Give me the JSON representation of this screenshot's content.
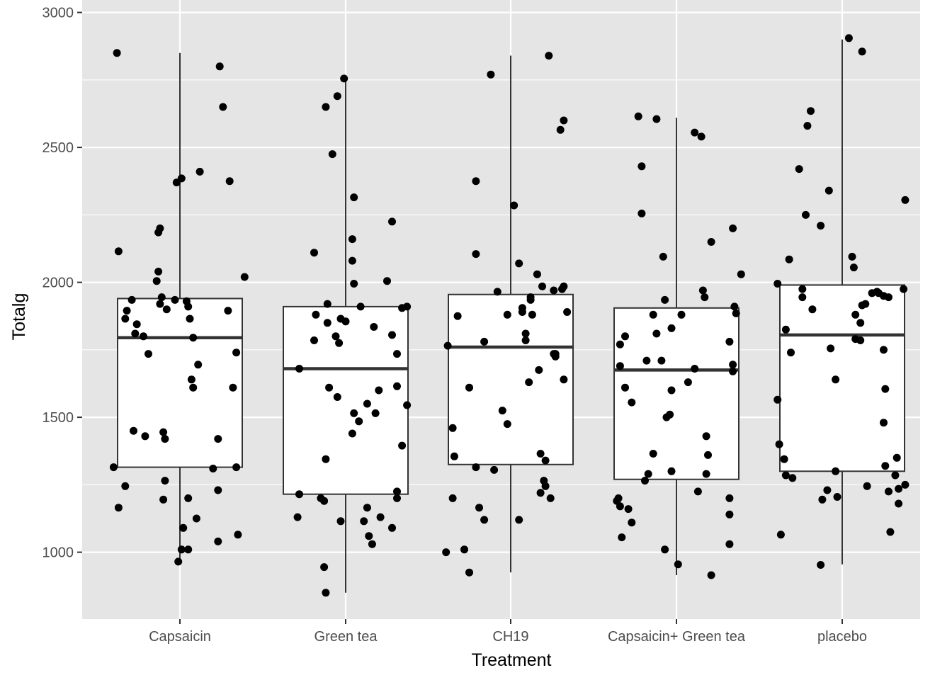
{
  "chart_data": {
    "type": "boxplot",
    "title": "",
    "xlabel": "Treatment",
    "ylabel": "Totalg",
    "ylim": [
      745,
      3005
    ],
    "y_ticks": [
      1000,
      1500,
      2000,
      2500,
      3000
    ],
    "y_tick_labels": [
      "1000",
      "1500",
      "2000",
      "2500",
      "3000"
    ],
    "grid": true,
    "legend": "none",
    "colors": {
      "panel_background": "#e5e5e5",
      "grid": "#ffffff",
      "box_fill": "#ffffff",
      "box_line": "#333333",
      "points": "#000000"
    },
    "categories": [
      "Capsaicin",
      "Green tea",
      "CH19",
      "Capsaicin+ Green tea",
      "placebo"
    ],
    "boxes": [
      {
        "category": "Capsaicin",
        "min": 965,
        "q1": 1315,
        "median": 1795,
        "q3": 1940,
        "max": 2850
      },
      {
        "category": "Green tea",
        "min": 850,
        "q1": 1215,
        "median": 1680,
        "q3": 1910,
        "max": 2755
      },
      {
        "category": "CH19",
        "min": 925,
        "q1": 1325,
        "median": 1760,
        "q3": 1955,
        "max": 2840
      },
      {
        "category": "Capsaicin+ Green tea",
        "min": 915,
        "q1": 1270,
        "median": 1675,
        "q3": 1905,
        "max": 2610
      },
      {
        "category": "placebo",
        "min": 955,
        "q1": 1300,
        "median": 1805,
        "q3": 1990,
        "max": 2900
      }
    ],
    "points": [
      [
        [
          -0.38,
          2850
        ],
        [
          -0.37,
          2115
        ],
        [
          -0.33,
          1865
        ],
        [
          -0.32,
          1895
        ],
        [
          -0.29,
          1935
        ],
        [
          -0.26,
          1845
        ],
        [
          -0.27,
          1810
        ],
        [
          -0.22,
          1800
        ],
        [
          -0.19,
          1735
        ],
        [
          -0.14,
          2005
        ],
        [
          -0.13,
          2040
        ],
        [
          -0.13,
          2185
        ],
        [
          -0.12,
          2200
        ],
        [
          -0.12,
          1920
        ],
        [
          -0.11,
          1945
        ],
        [
          -0.08,
          1900
        ],
        [
          -0.03,
          1935
        ],
        [
          -0.02,
          2370
        ],
        [
          0.01,
          2385
        ],
        [
          0.04,
          1930
        ],
        [
          0.05,
          1910
        ],
        [
          0.06,
          1865
        ],
        [
          0.08,
          1795
        ],
        [
          0.11,
          1695
        ],
        [
          0.07,
          1640
        ],
        [
          0.08,
          1610
        ],
        [
          0.12,
          2410
        ],
        [
          0.24,
          2800
        ],
        [
          0.26,
          2650
        ],
        [
          0.3,
          2375
        ],
        [
          0.29,
          1895
        ],
        [
          0.32,
          1610
        ],
        [
          0.34,
          1740
        ],
        [
          0.39,
          2020
        ],
        [
          -0.4,
          1315
        ],
        [
          -0.33,
          1245
        ],
        [
          -0.28,
          1450
        ],
        [
          -0.21,
          1430
        ],
        [
          -0.1,
          1445
        ],
        [
          -0.09,
          1420
        ],
        [
          -0.09,
          1265
        ],
        [
          -0.1,
          1195
        ],
        [
          0.05,
          1200
        ],
        [
          0.1,
          1125
        ],
        [
          0.02,
          1090
        ],
        [
          0.01,
          1010
        ],
        [
          0.05,
          1010
        ],
        [
          -0.01,
          965
        ],
        [
          0.2,
          1310
        ],
        [
          0.23,
          1420
        ],
        [
          0.23,
          1230
        ],
        [
          0.23,
          1040
        ],
        [
          0.34,
          1315
        ],
        [
          0.35,
          1065
        ],
        [
          -0.37,
          1165
        ]
      ],
      [
        [
          -0.19,
          2110
        ],
        [
          -0.19,
          1785
        ],
        [
          -0.28,
          1680
        ],
        [
          -0.28,
          1215
        ],
        [
          -0.29,
          1130
        ],
        [
          -0.18,
          1880
        ],
        [
          -0.12,
          2650
        ],
        [
          -0.11,
          1920
        ],
        [
          -0.11,
          1850
        ],
        [
          -0.1,
          1610
        ],
        [
          -0.12,
          1345
        ],
        [
          -0.15,
          1200
        ],
        [
          -0.13,
          1190
        ],
        [
          -0.13,
          945
        ],
        [
          -0.12,
          850
        ],
        [
          -0.05,
          1575
        ],
        [
          -0.08,
          2475
        ],
        [
          -0.05,
          2690
        ],
        [
          -0.01,
          2755
        ],
        [
          -0.03,
          1865
        ],
        [
          -0.06,
          1800
        ],
        [
          -0.04,
          1775
        ],
        [
          -0.03,
          1115
        ],
        [
          0.05,
          1995
        ],
        [
          0.0,
          1855
        ],
        [
          0.05,
          1515
        ],
        [
          0.04,
          1440
        ],
        [
          0.04,
          2160
        ],
        [
          0.04,
          2080
        ],
        [
          0.05,
          2315
        ],
        [
          0.09,
          1910
        ],
        [
          0.08,
          1485
        ],
        [
          0.11,
          1115
        ],
        [
          0.13,
          1550
        ],
        [
          0.13,
          1165
        ],
        [
          0.14,
          1060
        ],
        [
          0.16,
          1030
        ],
        [
          0.17,
          1835
        ],
        [
          0.18,
          1515
        ],
        [
          0.2,
          1600
        ],
        [
          0.21,
          1130
        ],
        [
          0.25,
          2005
        ],
        [
          0.28,
          2225
        ],
        [
          0.28,
          1805
        ],
        [
          0.28,
          1090
        ],
        [
          0.31,
          1735
        ],
        [
          0.31,
          1615
        ],
        [
          0.31,
          1225
        ],
        [
          0.31,
          1200
        ],
        [
          0.34,
          1905
        ],
        [
          0.34,
          1395
        ],
        [
          0.37,
          1910
        ],
        [
          0.37,
          1545
        ]
      ],
      [
        [
          -0.38,
          1765
        ],
        [
          -0.39,
          1000
        ],
        [
          -0.35,
          1460
        ],
        [
          -0.34,
          1355
        ],
        [
          -0.35,
          1200
        ],
        [
          -0.32,
          1875
        ],
        [
          -0.25,
          1610
        ],
        [
          -0.28,
          1010
        ],
        [
          -0.25,
          925
        ],
        [
          -0.21,
          2375
        ],
        [
          -0.21,
          2105
        ],
        [
          -0.21,
          1315
        ],
        [
          -0.19,
          1165
        ],
        [
          -0.16,
          1120
        ],
        [
          -0.16,
          1780
        ],
        [
          -0.12,
          2770
        ],
        [
          -0.1,
          1305
        ],
        [
          -0.08,
          1965
        ],
        [
          -0.05,
          1525
        ],
        [
          -0.02,
          1880
        ],
        [
          -0.02,
          1475
        ],
        [
          0.02,
          2285
        ],
        [
          0.05,
          2070
        ],
        [
          0.05,
          1120
        ],
        [
          0.07,
          1905
        ],
        [
          0.07,
          1890
        ],
        [
          0.09,
          1785
        ],
        [
          0.09,
          1810
        ],
        [
          0.11,
          1630
        ],
        [
          0.12,
          1945
        ],
        [
          0.12,
          1935
        ],
        [
          0.13,
          1880
        ],
        [
          0.16,
          2030
        ],
        [
          0.17,
          1675
        ],
        [
          0.18,
          1365
        ],
        [
          0.18,
          1220
        ],
        [
          0.19,
          1985
        ],
        [
          0.2,
          1265
        ],
        [
          0.21,
          1245
        ],
        [
          0.21,
          1340
        ],
        [
          0.23,
          2840
        ],
        [
          0.24,
          1200
        ],
        [
          0.26,
          1735
        ],
        [
          0.26,
          1970
        ],
        [
          0.27,
          1725
        ],
        [
          0.27,
          1735
        ],
        [
          0.3,
          2565
        ],
        [
          0.31,
          1975
        ],
        [
          0.32,
          2600
        ],
        [
          0.32,
          1985
        ],
        [
          0.32,
          1640
        ],
        [
          0.34,
          1890
        ]
      ],
      [
        [
          -0.36,
          1190
        ],
        [
          -0.35,
          1200
        ],
        [
          -0.34,
          1770
        ],
        [
          -0.34,
          1690
        ],
        [
          -0.34,
          1170
        ],
        [
          -0.33,
          1055
        ],
        [
          -0.31,
          1610
        ],
        [
          -0.31,
          1800
        ],
        [
          -0.29,
          1160
        ],
        [
          -0.27,
          1110
        ],
        [
          -0.27,
          1555
        ],
        [
          -0.23,
          2615
        ],
        [
          -0.21,
          2255
        ],
        [
          -0.21,
          2430
        ],
        [
          -0.19,
          1265
        ],
        [
          -0.18,
          1710
        ],
        [
          -0.17,
          1290
        ],
        [
          -0.14,
          1880
        ],
        [
          -0.14,
          1365
        ],
        [
          -0.12,
          2605
        ],
        [
          -0.12,
          1810
        ],
        [
          -0.09,
          1710
        ],
        [
          -0.08,
          2095
        ],
        [
          -0.07,
          1935
        ],
        [
          -0.07,
          1010
        ],
        [
          -0.06,
          1500
        ],
        [
          -0.04,
          1510
        ],
        [
          -0.03,
          1600
        ],
        [
          -0.03,
          1830
        ],
        [
          -0.03,
          1300
        ],
        [
          0.03,
          1880
        ],
        [
          0.01,
          955
        ],
        [
          0.07,
          1630
        ],
        [
          0.11,
          2555
        ],
        [
          0.15,
          2540
        ],
        [
          0.16,
          1970
        ],
        [
          0.17,
          1945
        ],
        [
          0.11,
          1680
        ],
        [
          0.13,
          1225
        ],
        [
          0.18,
          1430
        ],
        [
          0.19,
          1360
        ],
        [
          0.18,
          1290
        ],
        [
          0.21,
          2150
        ],
        [
          0.21,
          915
        ],
        [
          0.32,
          1200
        ],
        [
          0.32,
          1140
        ],
        [
          0.32,
          1030
        ],
        [
          0.32,
          1780
        ],
        [
          0.34,
          2200
        ],
        [
          0.34,
          1670
        ],
        [
          0.35,
          1910
        ],
        [
          0.34,
          1695
        ],
        [
          0.36,
          1885
        ],
        [
          0.39,
          2030
        ]
      ],
      [
        [
          -0.39,
          1995
        ],
        [
          -0.39,
          1565
        ],
        [
          -0.38,
          1400
        ],
        [
          -0.37,
          1065
        ],
        [
          -0.35,
          1345
        ],
        [
          -0.34,
          1825
        ],
        [
          -0.34,
          1285
        ],
        [
          -0.32,
          2085
        ],
        [
          -0.31,
          1740
        ],
        [
          -0.3,
          1275
        ],
        [
          -0.26,
          2420
        ],
        [
          -0.24,
          1945
        ],
        [
          -0.22,
          2250
        ],
        [
          -0.24,
          1975
        ],
        [
          -0.21,
          2580
        ],
        [
          -0.19,
          2635
        ],
        [
          -0.18,
          1900
        ],
        [
          -0.13,
          2210
        ],
        [
          -0.13,
          953
        ],
        [
          -0.08,
          2340
        ],
        [
          -0.07,
          1755
        ],
        [
          -0.04,
          1640
        ],
        [
          -0.04,
          1300
        ],
        [
          -0.12,
          1195
        ],
        [
          -0.09,
          1230
        ],
        [
          -0.03,
          1205
        ],
        [
          0.04,
          2905
        ],
        [
          0.06,
          2095
        ],
        [
          0.07,
          2055
        ],
        [
          0.08,
          1880
        ],
        [
          0.08,
          1790
        ],
        [
          0.11,
          1850
        ],
        [
          0.12,
          1915
        ],
        [
          0.11,
          1785
        ],
        [
          0.14,
          1920
        ],
        [
          0.15,
          1245
        ],
        [
          0.12,
          2855
        ],
        [
          0.18,
          1960
        ],
        [
          0.21,
          1965
        ],
        [
          0.22,
          1960
        ],
        [
          0.25,
          1950
        ],
        [
          0.25,
          1750
        ],
        [
          0.25,
          1480
        ],
        [
          0.26,
          1605
        ],
        [
          0.26,
          1320
        ],
        [
          0.28,
          1945
        ],
        [
          0.28,
          1225
        ],
        [
          0.29,
          1075
        ],
        [
          0.32,
          1285
        ],
        [
          0.33,
          1350
        ],
        [
          0.34,
          1235
        ],
        [
          0.34,
          1180
        ],
        [
          0.37,
          1975
        ],
        [
          0.38,
          2305
        ],
        [
          0.38,
          1250
        ]
      ]
    ]
  }
}
